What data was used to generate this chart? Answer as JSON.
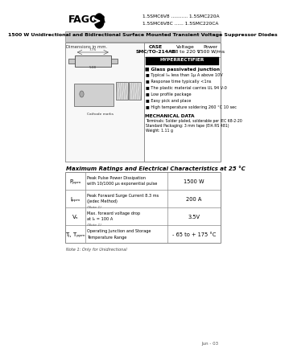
{
  "bg_color": "#ffffff",
  "fagor_text": "FAGOR",
  "part_numbers_line1": "1.5SMC6V8 ........... 1.5SMC220A",
  "part_numbers_line2": "1.5SMC6V8C ...... 1.5SMC220CA",
  "main_title": "1500 W Unidirectional and Bidirectional Surface Mounted Transient Voltage Suppressor Diodes",
  "features_title": "Glass passivated junction",
  "features": [
    "Typical Iₘ less than 1μ A above 10V",
    "Response time typically <1ns",
    "The plastic material carries UL 94 V-0",
    "Low profile package",
    "Easy pick and place",
    "High temperature soldering 260 °C 10 sec"
  ],
  "mech_title": "MECHANICAL DATA",
  "mech_lines": [
    "Terminals: Solder plated, solderable per IEC 68-2-20",
    "Standard Packaging: 3 mm tape (EIA RS 481)",
    "Weight: 1.11 g"
  ],
  "table_title": "Maximum Ratings and Electrical Characteristics at 25 °C",
  "table_rows": [
    {
      "symbol": "Pₚₚₘ",
      "description": "Peak Pulse Power Dissipation\nwith 10/1000 μs exponential pulse",
      "note": "",
      "value": "1500 W"
    },
    {
      "symbol": "Iₚₚₘ",
      "description": "Peak Forward Surge Current 8.3 ms\n(Jedec Method)",
      "note": "(Note 1)",
      "value": "200 A"
    },
    {
      "symbol": "Vₙ",
      "description": "Max. forward voltage drop\nat Iₙ = 100 A",
      "note": "(Note 1)",
      "value": "3.5V"
    },
    {
      "symbol": "Tⱼ, Tₚₚₘ",
      "description": "Operating Junction and Storage\nTemperature Range",
      "note": "",
      "value": "- 65 to + 175 °C"
    }
  ],
  "note_text": "Note 1: Only for Unidirectional",
  "date_text": "Jun - 03"
}
